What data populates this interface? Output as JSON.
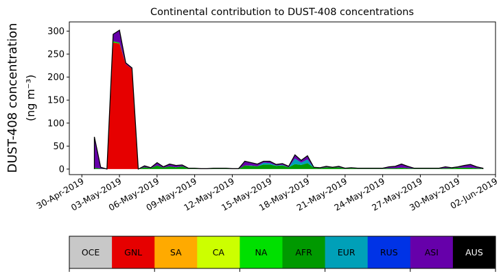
{
  "chart_data": {
    "type": "area",
    "stacked": true,
    "title": "Continental contribution to DUST-408 concentrations",
    "ylabel_line1": "DUST-408 concentration",
    "ylabel_line2": "(ng m⁻³)",
    "xlabel": "",
    "ylim": [
      -12,
      320
    ],
    "yticks": [
      0,
      50,
      100,
      150,
      200,
      250,
      300
    ],
    "xlim": [
      "2019-04-29",
      "2019-06-02"
    ],
    "xticks": [
      "2019-04-30",
      "2019-05-03",
      "2019-05-06",
      "2019-05-09",
      "2019-05-12",
      "2019-05-15",
      "2019-05-18",
      "2019-05-21",
      "2019-05-24",
      "2019-05-27",
      "2019-05-30",
      "2019-06-02"
    ],
    "xtick_labels": [
      "30-Apr-2019",
      "03-May-2019",
      "06-May-2019",
      "09-May-2019",
      "12-May-2019",
      "15-May-2019",
      "18-May-2019",
      "21-May-2019",
      "24-May-2019",
      "27-May-2019",
      "30-May-2019",
      "02-Jun-2019"
    ],
    "grid": false,
    "x": [
      "2019-05-01T00:00",
      "2019-05-01T12:00",
      "2019-05-02T00:00",
      "2019-05-02T12:00",
      "2019-05-03T00:00",
      "2019-05-03T12:00",
      "2019-05-04T00:00",
      "2019-05-04T12:00",
      "2019-05-05T00:00",
      "2019-05-05T12:00",
      "2019-05-06T00:00",
      "2019-05-06T12:00",
      "2019-05-07T00:00",
      "2019-05-07T12:00",
      "2019-05-08T00:00",
      "2019-05-08T12:00",
      "2019-05-09T00:00",
      "2019-05-09T12:00",
      "2019-05-10T00:00",
      "2019-05-10T12:00",
      "2019-05-11T00:00",
      "2019-05-11T12:00",
      "2019-05-12T00:00",
      "2019-05-12T12:00",
      "2019-05-13T00:00",
      "2019-05-13T12:00",
      "2019-05-14T00:00",
      "2019-05-14T12:00",
      "2019-05-15T00:00",
      "2019-05-15T12:00",
      "2019-05-16T00:00",
      "2019-05-16T12:00",
      "2019-05-17T00:00",
      "2019-05-17T12:00",
      "2019-05-18T00:00",
      "2019-05-18T12:00",
      "2019-05-19T00:00",
      "2019-05-19T12:00",
      "2019-05-20T00:00",
      "2019-05-20T12:00",
      "2019-05-21T00:00",
      "2019-05-21T12:00",
      "2019-05-22T00:00",
      "2019-05-22T12:00",
      "2019-05-23T00:00",
      "2019-05-23T12:00",
      "2019-05-24T00:00",
      "2019-05-24T12:00",
      "2019-05-25T00:00",
      "2019-05-25T12:00",
      "2019-05-26T00:00",
      "2019-05-26T12:00",
      "2019-05-27T00:00",
      "2019-05-27T12:00",
      "2019-05-28T00:00",
      "2019-05-28T12:00",
      "2019-05-29T00:00",
      "2019-05-29T12:00",
      "2019-05-30T00:00",
      "2019-05-30T12:00",
      "2019-05-31T00:00",
      "2019-05-31T12:00",
      "2019-06-01T00:00"
    ],
    "series": [
      {
        "name": "OCE",
        "color": "#c8c8c8",
        "values": [
          0,
          0,
          0,
          0,
          0,
          0,
          0,
          0,
          0,
          0,
          0,
          0,
          0,
          0,
          0,
          0,
          0,
          0,
          0,
          0,
          0,
          0,
          0,
          0,
          0,
          0,
          0,
          0,
          0,
          0,
          0,
          0,
          0,
          0,
          0,
          0,
          0,
          0,
          0,
          0,
          0,
          0,
          0,
          0,
          0,
          0,
          0,
          0,
          0,
          0,
          0,
          0,
          0,
          0,
          0,
          0,
          0,
          0,
          0,
          0,
          0,
          0,
          0
        ]
      },
      {
        "name": "GNL",
        "color": "#e60000",
        "values": [
          0,
          0,
          0,
          275,
          273,
          228,
          218,
          0,
          0,
          0,
          0,
          0,
          0,
          0,
          0,
          0,
          0,
          0,
          0,
          0,
          0,
          0,
          0,
          0,
          0,
          0,
          0,
          0,
          0,
          0,
          0,
          0,
          0,
          0,
          0,
          0,
          0,
          0,
          0,
          0,
          0,
          0,
          0,
          0,
          0,
          0,
          0,
          0,
          0,
          0,
          0,
          0,
          0,
          0,
          0,
          0,
          0,
          0,
          0,
          0,
          0,
          0,
          0
        ]
      },
      {
        "name": "SA",
        "color": "#ffaa00",
        "values": [
          0,
          0,
          0,
          0,
          0,
          0,
          0,
          0,
          0,
          0,
          0,
          0,
          0,
          0,
          0,
          0,
          0,
          0,
          0,
          0,
          0,
          0,
          0,
          0,
          0,
          0,
          0,
          0,
          0,
          0,
          0,
          0,
          0,
          0,
          0,
          0,
          0,
          0,
          0,
          0,
          0,
          0,
          0,
          0,
          0,
          0,
          0,
          0,
          0,
          0,
          0,
          0,
          0,
          0,
          0,
          0,
          0,
          0,
          0,
          0,
          0,
          0,
          0
        ]
      },
      {
        "name": "CA",
        "color": "#ccff00",
        "values": [
          0,
          0,
          0,
          0,
          0,
          0,
          0,
          0,
          0,
          0,
          0,
          0,
          0,
          0,
          0,
          0,
          0,
          0,
          0,
          0,
          0,
          0,
          0,
          0,
          0,
          0,
          0,
          0,
          0,
          0,
          0,
          0,
          0,
          0,
          0,
          0,
          0,
          0,
          0,
          0,
          0,
          0,
          0,
          0,
          0,
          0,
          0,
          0,
          0,
          0,
          0,
          0,
          0,
          0,
          0,
          0,
          0,
          0,
          0,
          0,
          0,
          0,
          0
        ]
      },
      {
        "name": "NA",
        "color": "#00e000",
        "values": [
          0,
          0,
          0,
          3,
          2,
          0,
          0,
          0,
          0,
          0,
          0,
          0,
          0,
          0,
          0,
          0,
          0,
          0,
          0,
          0,
          0,
          0,
          0,
          0,
          0,
          0,
          0,
          0,
          0,
          0,
          0,
          0,
          0,
          0,
          0,
          0,
          0,
          0,
          0,
          0,
          0,
          0,
          0,
          0,
          0,
          0,
          0,
          0,
          0,
          0,
          0,
          0,
          0,
          0,
          0,
          0,
          0,
          0,
          0,
          0,
          0,
          0,
          0
        ]
      },
      {
        "name": "AFR",
        "color": "#009900",
        "values": [
          3,
          1,
          0,
          0,
          0,
          0,
          0,
          0,
          4,
          2,
          8,
          3,
          6,
          4,
          6,
          1,
          1,
          0,
          0,
          1,
          1,
          1,
          0,
          0,
          8,
          7,
          6,
          10,
          10,
          7,
          8,
          4,
          11,
          9,
          13,
          3,
          2,
          4,
          3,
          4,
          1,
          2,
          1,
          1,
          1,
          1,
          1,
          2,
          2,
          3,
          2,
          1,
          1,
          1,
          1,
          1,
          2,
          2,
          3,
          3,
          3,
          2,
          1
        ]
      },
      {
        "name": "EUR",
        "color": "#00a0b8",
        "values": [
          0,
          0,
          0,
          0,
          0,
          0,
          0,
          0,
          0,
          0,
          0,
          0,
          0,
          0,
          0,
          0,
          0,
          0,
          0,
          0,
          0,
          0,
          0,
          0,
          0,
          1,
          0,
          4,
          3,
          1,
          1,
          0,
          12,
          5,
          8,
          0,
          0,
          0,
          0,
          0,
          0,
          0,
          0,
          0,
          0,
          0,
          0,
          0,
          0,
          0,
          0,
          0,
          0,
          0,
          0,
          0,
          0,
          0,
          0,
          0,
          0,
          0,
          0
        ]
      },
      {
        "name": "RUS",
        "color": "#0033e6",
        "values": [
          0,
          0,
          0,
          0,
          0,
          0,
          0,
          0,
          0,
          0,
          0,
          0,
          0,
          0,
          0,
          0,
          0,
          0,
          0,
          0,
          0,
          0,
          0,
          0,
          0,
          0,
          0,
          0,
          0,
          0,
          0,
          0,
          0,
          0,
          0,
          0,
          0,
          0,
          0,
          0,
          0,
          0,
          0,
          0,
          0,
          0,
          0,
          0,
          0,
          0,
          0,
          0,
          0,
          0,
          0,
          0,
          0,
          0,
          0,
          0,
          0,
          0,
          0
        ]
      },
      {
        "name": "ASI",
        "color": "#6600aa",
        "values": [
          67,
          3,
          0,
          15,
          27,
          3,
          2,
          0,
          3,
          1,
          6,
          2,
          5,
          4,
          3,
          1,
          1,
          1,
          1,
          1,
          1,
          1,
          1,
          1,
          9,
          6,
          5,
          3,
          4,
          2,
          3,
          2,
          8,
          5,
          8,
          1,
          1,
          2,
          1,
          2,
          1,
          1,
          1,
          1,
          1,
          1,
          1,
          3,
          4,
          8,
          4,
          1,
          1,
          1,
          1,
          1,
          3,
          1,
          2,
          5,
          7,
          3,
          1
        ]
      },
      {
        "name": "AUS",
        "color": "#000000",
        "values": [
          0,
          0,
          0,
          0,
          0,
          0,
          0,
          0,
          0,
          0,
          0,
          0,
          0,
          0,
          0,
          0,
          0,
          0,
          0,
          0,
          0,
          0,
          0,
          0,
          0,
          0,
          0,
          0,
          0,
          0,
          0,
          0,
          0,
          0,
          0,
          0,
          0,
          0,
          0,
          0,
          0,
          0,
          0,
          0,
          0,
          0,
          0,
          0,
          0,
          0,
          0,
          0,
          0,
          0,
          0,
          0,
          0,
          0,
          0,
          0,
          0,
          0,
          0
        ]
      }
    ],
    "colorbar": {
      "labels": [
        "OCE",
        "GNL",
        "SA",
        "CA",
        "NA",
        "AFR",
        "EUR",
        "RUS",
        "ASI",
        "AUS"
      ],
      "colors": [
        "#c8c8c8",
        "#e60000",
        "#ffaa00",
        "#ccff00",
        "#00e000",
        "#009900",
        "#00a0b8",
        "#0033e6",
        "#6600aa",
        "#000000"
      ],
      "label_colors": [
        "#000000",
        "#000000",
        "#000000",
        "#000000",
        "#000000",
        "#000000",
        "#000000",
        "#000000",
        "#000000",
        "#ffffff"
      ]
    }
  }
}
